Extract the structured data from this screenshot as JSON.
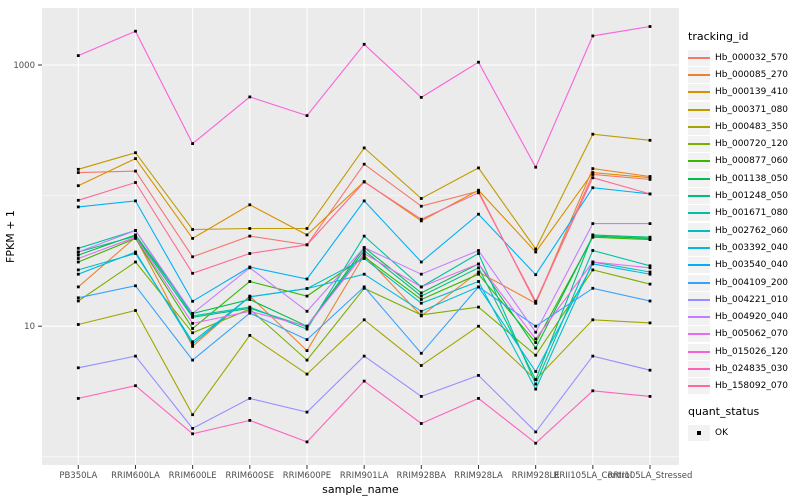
{
  "chart_data": {
    "type": "line",
    "title": "",
    "xlabel": "sample_name",
    "ylabel": "FPKM + 1",
    "y_scale": "log10",
    "ylim": [
      0.87,
      2700
    ],
    "grid": "on",
    "panel_bg": "#EBEBEB",
    "grid_color": "#FFFFFF",
    "axis_text_color": "#4D4D4D",
    "point_color": "#000000",
    "y_ticks": [
      {
        "label": "1000",
        "value": 1000
      },
      {
        "label": "10",
        "value": 10
      }
    ],
    "y_minor_gridlines": [
      100,
      1
    ],
    "categories": [
      "PB350LA",
      "RRIM600LA",
      "RRIM600LE",
      "RRIM600SE",
      "RRIM600PE",
      "RRIM901LA",
      "RRIM928BA",
      "RRIM928LA",
      "RRIM928LE",
      "RRII105LA_Control",
      "RRII105LA_Stressed"
    ],
    "legend": {
      "position": "right",
      "tracking_title": "tracking_id",
      "quant_title": "quant_status",
      "quant_value": "OK"
    },
    "series": [
      {
        "name": "Hb_000032_570",
        "color": "#F8766D",
        "values": [
          150,
          154,
          34,
          49,
          42,
          174,
          83,
          108,
          15,
          145,
          133
        ]
      },
      {
        "name": "Hb_000085_270",
        "color": "#EA8331",
        "values": [
          20,
          48,
          7,
          17,
          6.5,
          35,
          12,
          26,
          15,
          161,
          140
        ]
      },
      {
        "name": "Hb_000139_410",
        "color": "#D89000",
        "values": [
          119,
          192,
          47,
          85,
          50,
          128,
          64,
          110,
          37,
          150,
          137
        ]
      },
      {
        "name": "Hb_000371_080",
        "color": "#C09B00",
        "values": [
          159,
          213,
          55,
          56,
          56,
          232,
          95,
          163,
          39,
          295,
          265
        ]
      },
      {
        "name": "Hb_000483_350",
        "color": "#A3A500",
        "values": [
          10.3,
          13.2,
          2.1,
          8.5,
          4.3,
          11.2,
          5,
          10,
          3.9,
          11.2,
          10.6
        ]
      },
      {
        "name": "Hb_000720_120",
        "color": "#7CAE00",
        "values": [
          15.6,
          31,
          8.9,
          13.5,
          5.5,
          19.5,
          12.2,
          14,
          6,
          27,
          21
        ]
      },
      {
        "name": "Hb_000877_060",
        "color": "#39B600",
        "values": [
          31,
          47,
          9.6,
          22,
          17,
          34,
          16,
          25,
          7.5,
          48,
          46
        ]
      },
      {
        "name": "Hb_001138_050",
        "color": "#00BB4E",
        "values": [
          35,
          50,
          12.5,
          16,
          10,
          40,
          18,
          30,
          6.8,
          49,
          47
        ]
      },
      {
        "name": "Hb_001248_050",
        "color": "#00BF7D",
        "values": [
          37,
          49,
          11.7,
          13.7,
          9.9,
          38,
          17,
          28,
          3.9,
          50,
          48
        ]
      },
      {
        "name": "Hb_001671_080",
        "color": "#00C1A3",
        "values": [
          39.5,
          54,
          12,
          14,
          9.5,
          49,
          20,
          36,
          3.6,
          38,
          29
        ]
      },
      {
        "name": "Hb_002762_060",
        "color": "#00BFC4",
        "values": [
          27,
          36,
          7.6,
          16.8,
          19.4,
          33,
          15,
          22,
          3.3,
          31,
          26
        ]
      },
      {
        "name": "Hb_003392_040",
        "color": "#00BAE0",
        "values": [
          25,
          37,
          7.3,
          16.8,
          19.4,
          25,
          13,
          20,
          4.5,
          30,
          25
        ]
      },
      {
        "name": "Hb_003540_040",
        "color": "#00B0F6",
        "values": [
          82,
          91,
          15.5,
          28.4,
          23,
          91,
          31,
          72,
          24.8,
          115,
          103
        ]
      },
      {
        "name": "Hb_004109_200",
        "color": "#35A2FF",
        "values": [
          16.5,
          20.4,
          5.5,
          12.6,
          7.9,
          20,
          6.2,
          20,
          10,
          19.5,
          15.6
        ]
      },
      {
        "name": "Hb_004221_010",
        "color": "#9590FF",
        "values": [
          4.8,
          5.9,
          1.65,
          2.8,
          2.2,
          5.9,
          2.9,
          4.2,
          1.55,
          5.9,
          4.6
        ]
      },
      {
        "name": "Hb_004920_040",
        "color": "#C77CFF",
        "values": [
          37,
          54,
          12.5,
          28,
          13,
          40,
          25,
          38,
          9,
          61,
          61
        ]
      },
      {
        "name": "Hb_005062_070",
        "color": "#E76BF3",
        "values": [
          33,
          48,
          10.5,
          13,
          10,
          36,
          20,
          30,
          8,
          31,
          28
        ]
      },
      {
        "name": "Hb_015026_120",
        "color": "#FA62DB",
        "values": [
          1180,
          1815,
          250,
          570,
          410,
          1440,
          565,
          1050,
          165,
          1670,
          1970
        ]
      },
      {
        "name": "Hb_024835_030",
        "color": "#FF62BC",
        "values": [
          2.8,
          3.5,
          1.5,
          1.9,
          1.3,
          3.8,
          1.8,
          2.8,
          1.27,
          3.2,
          2.9
        ]
      },
      {
        "name": "Hb_158092_070",
        "color": "#FF6A98",
        "values": [
          92,
          126,
          25.4,
          36,
          42,
          127,
          66,
          105,
          15.5,
          137,
          103
        ]
      }
    ]
  }
}
